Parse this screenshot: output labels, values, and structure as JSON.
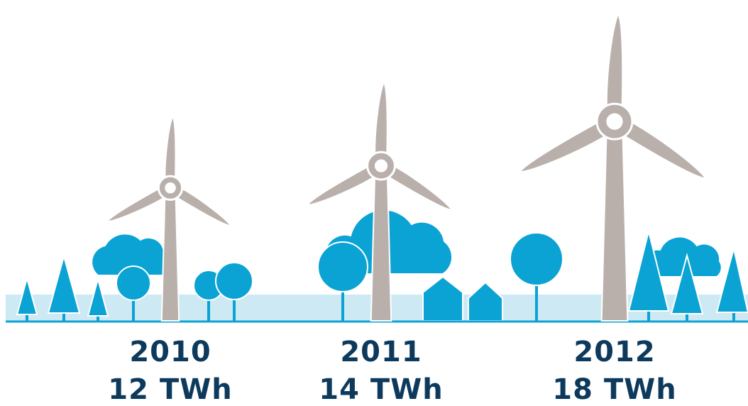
{
  "chart_data": {
    "type": "pictogram",
    "categories": [
      "2010",
      "2011",
      "2012"
    ],
    "values": [
      12,
      14,
      18
    ],
    "value_labels": [
      "12 TWh",
      "14 TWh",
      "18 TWh"
    ],
    "color": "#b9b0ab"
  }
}
